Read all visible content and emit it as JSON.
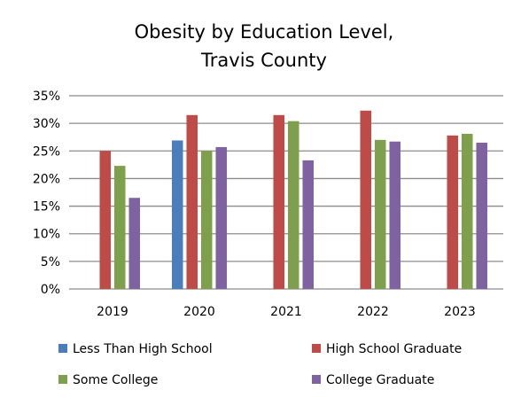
{
  "chart_data": {
    "type": "bar",
    "title_lines": [
      "Obesity by Education Level,",
      "Travis County"
    ],
    "xlabel": "",
    "ylabel": "",
    "categories": [
      "2019",
      "2020",
      "2021",
      "2022",
      "2023"
    ],
    "ylim": [
      0,
      35
    ],
    "yticks": [
      0,
      5,
      10,
      15,
      20,
      25,
      30,
      35
    ],
    "ytick_labels": [
      "0%",
      "5%",
      "10%",
      "15%",
      "20%",
      "25%",
      "30%",
      "35%"
    ],
    "grid": true,
    "legend_position": "bottom",
    "series": [
      {
        "name": "Less Than High School",
        "color": "#4a7ebb",
        "values": [
          null,
          26.9,
          null,
          null,
          null
        ]
      },
      {
        "name": "High School Graduate",
        "color": "#be4b48",
        "values": [
          25.0,
          31.5,
          31.5,
          32.3,
          27.8
        ]
      },
      {
        "name": "Some College",
        "color": "#7ea04d",
        "values": [
          22.3,
          25.0,
          30.4,
          27.0,
          28.1
        ]
      },
      {
        "name": "College Graduate",
        "color": "#7f62a0",
        "values": [
          16.5,
          25.7,
          23.3,
          26.7,
          26.5
        ]
      }
    ]
  }
}
